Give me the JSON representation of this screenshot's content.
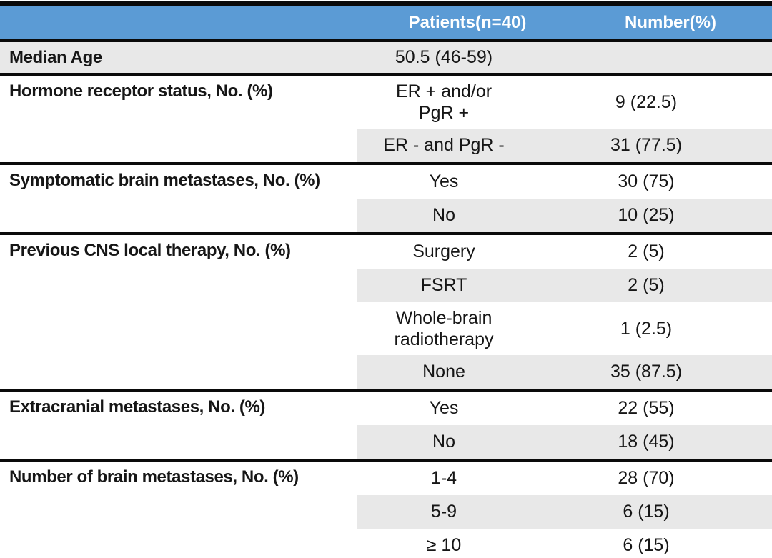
{
  "colors": {
    "header_bg": "#5b9bd5",
    "header_text": "#ffffff",
    "row_shade": "#e8e8e8",
    "border": "#0a0a0a",
    "text": "#161616",
    "background": "#ffffff"
  },
  "header": {
    "col1": "",
    "col2": "Patients(n=40)",
    "col3": "Number(%)"
  },
  "sections": [
    {
      "label": "Median Age",
      "label_shaded": true,
      "rows": [
        {
          "value": "50.5 (46-59)",
          "number": "",
          "shaded": true
        }
      ]
    },
    {
      "label": "Hormone receptor status, No. (%)",
      "label_shaded": false,
      "rows": [
        {
          "value": "ER + and/or\nPgR +",
          "number": "9 (22.5)",
          "shaded": false
        },
        {
          "value": "ER - and PgR -",
          "number": "31 (77.5)",
          "shaded": true
        }
      ]
    },
    {
      "label": "Symptomatic brain metastases, No. (%)",
      "label_shaded": false,
      "rows": [
        {
          "value": "Yes",
          "number": "30 (75)",
          "shaded": false
        },
        {
          "value": "No",
          "number": "10 (25)",
          "shaded": true
        }
      ]
    },
    {
      "label": "Previous CNS local therapy, No. (%)",
      "label_shaded": false,
      "rows": [
        {
          "value": "Surgery",
          "number": "2 (5)",
          "shaded": false
        },
        {
          "value": "FSRT",
          "number": "2 (5)",
          "shaded": true
        },
        {
          "value": "Whole-brain\nradiotherapy",
          "number": "1 (2.5)",
          "shaded": false
        },
        {
          "value": "None",
          "number": "35 (87.5)",
          "shaded": true
        }
      ]
    },
    {
      "label": "Extracranial metastases, No. (%)",
      "label_shaded": false,
      "rows": [
        {
          "value": "Yes",
          "number": "22 (55)",
          "shaded": false
        },
        {
          "value": "No",
          "number": "18 (45)",
          "shaded": true
        }
      ]
    },
    {
      "label": "Number of brain metastases, No. (%)",
      "label_shaded": false,
      "rows": [
        {
          "value": "1-4",
          "number": "28 (70)",
          "shaded": false
        },
        {
          "value": "5-9",
          "number": "6 (15)",
          "shaded": true
        },
        {
          "value": "≥ 10",
          "number": "6 (15)",
          "shaded": false
        }
      ]
    }
  ]
}
